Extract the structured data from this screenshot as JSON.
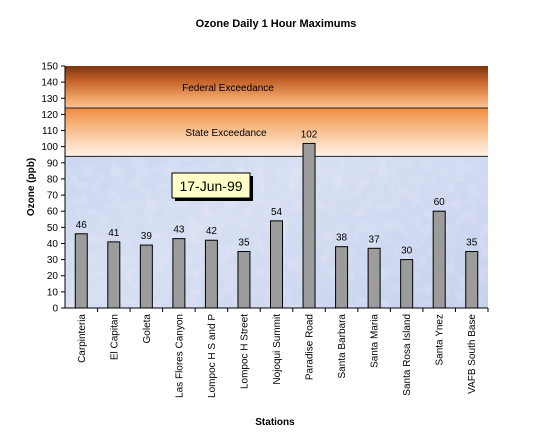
{
  "chart_data": {
    "type": "bar",
    "title": "Ozone Daily 1 Hour Maximums",
    "xlabel": "Stations",
    "ylabel": "Ozone (ppb)",
    "ylim": [
      0,
      150
    ],
    "ytick_step": 10,
    "categories": [
      "Carpinteria",
      "El Capitan",
      "Goleta",
      "Las Flores Canyon",
      "Lompoc H S and P",
      "Lompoc H Street",
      "Nojoqui Summit",
      "Paradise Road",
      "Santa Barbara",
      "Santa Maria",
      "Santa Rosa Island",
      "Santa Ynez",
      "VAFB South Base"
    ],
    "values": [
      46,
      41,
      39,
      43,
      42,
      35,
      54,
      102,
      38,
      37,
      30,
      60,
      35
    ],
    "date_label": "17-Jun-99",
    "bands": [
      {
        "label": "Federal Exceedance",
        "from": 124,
        "to": 150
      },
      {
        "label": "State Exceedance",
        "from": 94,
        "to": 124
      }
    ],
    "bar_color": "#9c9c9c",
    "grid": false,
    "legend": "none"
  }
}
